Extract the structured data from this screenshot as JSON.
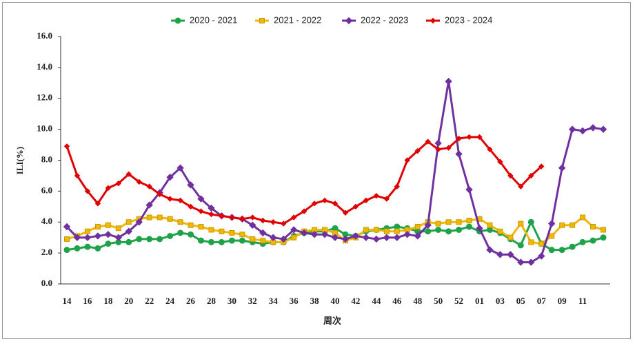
{
  "chart_data": {
    "type": "line",
    "ylabel": "ILI(%)",
    "xlabel": "周次",
    "categories": [
      "14",
      null,
      "16",
      null,
      "18",
      null,
      "20",
      null,
      "22",
      null,
      "24",
      null,
      "26",
      null,
      "28",
      null,
      "30",
      null,
      "32",
      null,
      "34",
      null,
      "36",
      null,
      "38",
      null,
      "40",
      null,
      "42",
      null,
      "44",
      null,
      "46",
      null,
      "48",
      null,
      "50",
      null,
      "52",
      null,
      "01",
      null,
      "03",
      null,
      "05",
      null,
      "07",
      null,
      "09",
      null,
      "11",
      null,
      null
    ],
    "ylim": [
      0,
      16
    ],
    "yticks": [
      {
        "value": 0,
        "label": "0.0"
      },
      {
        "value": 2,
        "label": "2.0"
      },
      {
        "value": 4,
        "label": "4.0"
      },
      {
        "value": 6,
        "label": "6.0"
      },
      {
        "value": 8,
        "label": "8.0"
      },
      {
        "value": 10,
        "label": "10.0"
      },
      {
        "value": 12,
        "label": "12.0"
      },
      {
        "value": 14,
        "label": "14.0"
      },
      {
        "value": 16,
        "label": "16.0"
      }
    ],
    "grid": false,
    "legend": "top",
    "series": [
      {
        "name": "2020 - 2021",
        "color": "#1fa34a",
        "marker": "circle",
        "values": [
          2.2,
          2.3,
          2.4,
          2.3,
          2.6,
          2.7,
          2.7,
          2.9,
          2.9,
          2.9,
          3.1,
          3.3,
          3.2,
          2.8,
          2.7,
          2.7,
          2.8,
          2.8,
          2.7,
          2.6,
          2.7,
          2.7,
          3.1,
          3.3,
          3.4,
          3.4,
          3.6,
          3.2,
          3.1,
          3.4,
          3.5,
          3.6,
          3.7,
          3.6,
          3.4,
          3.4,
          3.5,
          3.4,
          3.5,
          3.7,
          3.4,
          3.5,
          3.3,
          2.9,
          2.5,
          4.0,
          2.6,
          2.2,
          2.2,
          2.4,
          2.7,
          2.8,
          3.0
        ]
      },
      {
        "name": "2021 - 2022",
        "color": "#f2b705",
        "marker": "square",
        "values": [
          2.9,
          3.1,
          3.4,
          3.7,
          3.8,
          3.6,
          4.0,
          4.2,
          4.3,
          4.3,
          4.2,
          4.0,
          3.8,
          3.7,
          3.5,
          3.4,
          3.3,
          3.2,
          2.9,
          2.8,
          2.7,
          2.7,
          3.0,
          3.4,
          3.5,
          3.5,
          3.3,
          2.8,
          3.0,
          3.5,
          3.5,
          3.4,
          3.4,
          3.5,
          3.7,
          4.0,
          3.9,
          4.0,
          4.0,
          4.1,
          4.2,
          3.8,
          3.4,
          3.0,
          3.9,
          2.7,
          2.6,
          3.1,
          3.8,
          3.8,
          4.3,
          3.7,
          3.5
        ]
      },
      {
        "name": "2022 - 2023",
        "color": "#7030a0",
        "marker": "diamond",
        "values": [
          3.7,
          3.0,
          3.0,
          3.1,
          3.2,
          3.0,
          3.4,
          4.0,
          5.1,
          5.9,
          6.9,
          7.5,
          6.4,
          5.5,
          4.9,
          4.4,
          4.3,
          4.2,
          3.8,
          3.3,
          3.0,
          2.9,
          3.5,
          3.3,
          3.2,
          3.2,
          3.0,
          2.9,
          3.1,
          3.0,
          2.9,
          3.0,
          3.0,
          3.2,
          3.1,
          3.8,
          9.1,
          13.1,
          8.4,
          6.1,
          3.6,
          2.2,
          1.9,
          1.9,
          1.4,
          1.4,
          1.8,
          3.9,
          7.5,
          10.0,
          9.9,
          10.1,
          10.0
        ]
      },
      {
        "name": "2023 - 2024",
        "color": "#e00000",
        "marker": "smalldiamond",
        "values": [
          8.9,
          7.0,
          6.0,
          5.2,
          6.2,
          6.5,
          7.1,
          6.6,
          6.3,
          5.8,
          5.5,
          5.4,
          5.0,
          4.7,
          4.5,
          4.4,
          4.3,
          4.2,
          4.3,
          4.1,
          4.0,
          3.9,
          4.3,
          4.7,
          5.2,
          5.4,
          5.2,
          4.6,
          5.0,
          5.4,
          5.7,
          5.5,
          6.3,
          8.0,
          8.6,
          9.2,
          8.7,
          8.8,
          9.4,
          9.5,
          9.5,
          8.7,
          7.9,
          7.0,
          6.3,
          7.0,
          7.6,
          null,
          null,
          null,
          null,
          null,
          null
        ]
      }
    ]
  }
}
